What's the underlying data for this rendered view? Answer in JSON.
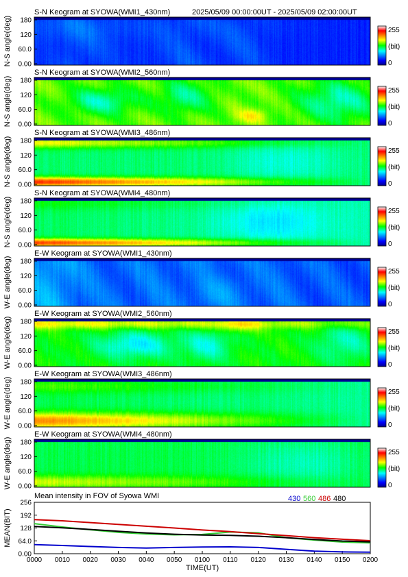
{
  "header": {
    "range": "2025/05/09 00:00:00UT - 2025/05/09 02:00:00UT"
  },
  "colorbar": {
    "max_label": "255",
    "unit_label": "(bit)",
    "min_label": "0"
  },
  "keograms": [
    {
      "title": "S-N Keogram at SYOWA(WMI1_430nm)",
      "ylabel": "N-S angle(deg)",
      "ticks": [
        "180",
        "120",
        "60.0",
        "0.00"
      ]
    },
    {
      "title": "S-N Keogram at SYOWA(WMI2_560nm)",
      "ylabel": "N-S angle(deg)",
      "ticks": [
        "180",
        "120",
        "60.0",
        "0.00"
      ]
    },
    {
      "title": "S-N Keogram at SYOWA(WMI3_486nm)",
      "ylabel": "N-S angle(deg)",
      "ticks": [
        "180",
        "120",
        "60.0",
        "0.00"
      ]
    },
    {
      "title": "S-N Keogram at SYOWA(WMI4_480nm)",
      "ylabel": "N-S angle(deg)",
      "ticks": [
        "180",
        "120",
        "60.0",
        "0.00"
      ]
    },
    {
      "title": "E-W Keogram at SYOWA(WMI1_430nm)",
      "ylabel": "W-E angle(deg)",
      "ticks": [
        "180",
        "120",
        "60.0",
        "0.00"
      ]
    },
    {
      "title": "E-W Keogram at SYOWA(WMI2_560nm)",
      "ylabel": "W-E angle(deg)",
      "ticks": [
        "180",
        "120",
        "60.0",
        "0.00"
      ]
    },
    {
      "title": "E-W Keogram at SYOWA(WMI3_486nm)",
      "ylabel": "W-E angle(deg)",
      "ticks": [
        "180",
        "120",
        "60.0",
        "0.00"
      ]
    },
    {
      "title": "E-W Keogram at SYOWA(WMI4_480nm)",
      "ylabel": "W-E angle(deg)",
      "ticks": [
        "180",
        "120",
        "60.0",
        "0.00"
      ]
    }
  ],
  "chart_data": {
    "type": "line",
    "title": "Mean intensity in FOV of Syowa WMI",
    "xlabel": "TIME(UT)",
    "ylabel": "MEAN(BIT)",
    "x_ticks": [
      "0000",
      "0010",
      "0020",
      "0030",
      "0040",
      "0050",
      "0100",
      "0110",
      "0120",
      "0130",
      "0140",
      "0150",
      "0200"
    ],
    "y_ticks": [
      "256",
      "192",
      "128",
      "64.0",
      "0.00"
    ],
    "xlim": [
      0,
      120
    ],
    "ylim": [
      0,
      256
    ],
    "x": [
      0,
      10,
      20,
      30,
      40,
      50,
      60,
      70,
      80,
      90,
      100,
      110,
      120
    ],
    "series": [
      {
        "name": "430",
        "color": "#0000cc",
        "values": [
          45,
          41,
          36,
          31,
          28,
          31,
          33,
          34,
          31,
          22,
          13,
          9,
          8
        ]
      },
      {
        "name": "560",
        "color": "#33cc33",
        "values": [
          150,
          133,
          119,
          106,
          98,
          94,
          96,
          108,
          104,
          80,
          68,
          58,
          54
        ]
      },
      {
        "name": "486",
        "color": "#cc0000",
        "values": [
          170,
          164,
          155,
          146,
          137,
          128,
          118,
          110,
          100,
          90,
          80,
          72,
          65
        ]
      },
      {
        "name": "480",
        "color": "#000000",
        "values": [
          136,
          129,
          121,
          112,
          103,
          97,
          93,
          91,
          87,
          80,
          71,
          63,
          59
        ]
      }
    ]
  }
}
